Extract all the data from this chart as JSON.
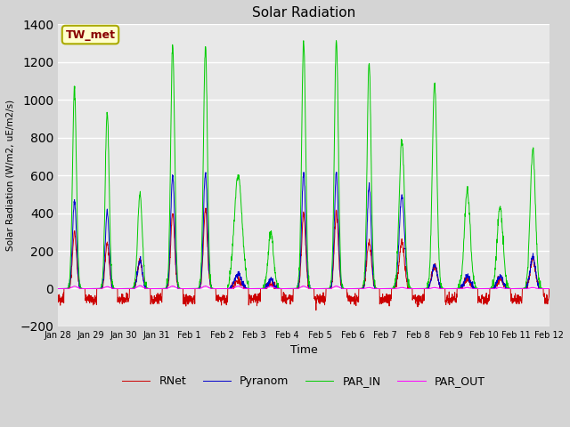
{
  "title": "Solar Radiation",
  "xlabel": "Time",
  "ylabel": "Solar Radiation (W/m2, uE/m2/s)",
  "ylim": [
    -200,
    1400
  ],
  "yticks": [
    -200,
    0,
    200,
    400,
    600,
    800,
    1000,
    1200,
    1400
  ],
  "fig_bg": "#d4d4d4",
  "plot_bg": "#e8e8e8",
  "grid_color": "#ffffff",
  "legend_labels": [
    "RNet",
    "Pyranom",
    "PAR_IN",
    "PAR_OUT"
  ],
  "line_colors": [
    "#cc0000",
    "#0000cc",
    "#00cc00",
    "#ff00ff"
  ],
  "annotation_text": "TW_met",
  "annotation_bg": "#ffffcc",
  "annotation_border": "#aaaa00",
  "annotation_text_color": "#880000",
  "x_tick_labels": [
    "Jan 28",
    "Jan 29",
    "Jan 30",
    "Jan 31",
    "Feb 1",
    "Feb 2",
    "Feb 3",
    "Feb 4",
    "Feb 5",
    "Feb 6",
    "Feb 7",
    "Feb 8",
    "Feb 9",
    "Feb 10",
    "Feb 11",
    "Feb 12"
  ],
  "num_days": 15,
  "pts_per_day": 144
}
